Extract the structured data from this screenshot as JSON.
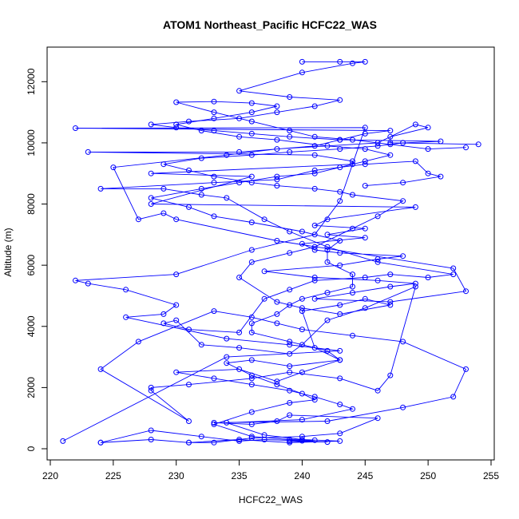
{
  "chart_data": {
    "type": "line",
    "title": "ATOM1 Northeast_Pacific HCFC22_WAS",
    "xlabel": "HCFC22_WAS",
    "ylabel": "Altitude (m)",
    "xlim": [
      220,
      255
    ],
    "ylim": [
      0,
      13000
    ],
    "xticks": [
      220,
      225,
      230,
      235,
      240,
      245,
      250,
      255
    ],
    "yticks": [
      0,
      2000,
      4000,
      6000,
      8000,
      10000,
      12000
    ],
    "marker": "open-circle",
    "grid": false,
    "color": "#0000ff",
    "series": [
      {
        "points": [
          [
            221,
            250
          ],
          [
            234,
            3000
          ],
          [
            243,
            3200
          ],
          [
            239,
            3400
          ],
          [
            234,
            3600
          ],
          [
            226,
            4300
          ],
          [
            229,
            4400
          ],
          [
            230,
            4700
          ],
          [
            226,
            5200
          ],
          [
            223,
            5400
          ],
          [
            222,
            5500
          ],
          [
            230,
            5700
          ],
          [
            236,
            6500
          ],
          [
            241,
            7000
          ],
          [
            243,
            8100
          ],
          [
            245,
            10500
          ],
          [
            222,
            10480
          ],
          [
            247,
            10400
          ],
          [
            245,
            10300
          ],
          [
            243,
            10100
          ],
          [
            241,
            9900
          ],
          [
            235,
            9700
          ],
          [
            223,
            9700
          ],
          [
            241,
            9600
          ],
          [
            244,
            9400
          ],
          [
            244,
            9300
          ],
          [
            228,
            9000
          ],
          [
            236,
            8900
          ],
          [
            228,
            8000
          ],
          [
            249,
            7900
          ],
          [
            242,
            7500
          ],
          [
            241,
            7300
          ],
          [
            245,
            7200
          ],
          [
            242,
            7000
          ],
          [
            245,
            6900
          ],
          [
            240,
            6700
          ],
          [
            241,
            6500
          ],
          [
            243,
            6400
          ],
          [
            248,
            6300
          ],
          [
            246,
            6200
          ],
          [
            243,
            6000
          ],
          [
            237,
            5800
          ],
          [
            241,
            5600
          ],
          [
            246,
            5500
          ],
          [
            249,
            5400
          ],
          [
            247,
            5300
          ],
          [
            244,
            5100
          ],
          [
            241,
            4900
          ],
          [
            247,
            4800
          ],
          [
            253,
            5150
          ],
          [
            252,
            5900
          ],
          [
            238,
            6800
          ],
          [
            230,
            7500
          ],
          [
            229,
            7700
          ],
          [
            227,
            7500
          ],
          [
            225,
            9200
          ],
          [
            234,
            9600
          ],
          [
            238,
            9800
          ],
          [
            246,
            10000
          ],
          [
            249,
            10600
          ],
          [
            250,
            10500
          ],
          [
            247,
            10200
          ],
          [
            247,
            10000
          ],
          [
            254,
            9950
          ]
        ]
      },
      {
        "points": [
          [
            224,
            200
          ],
          [
            228,
            300
          ],
          [
            231,
            200
          ],
          [
            233,
            200
          ],
          [
            236,
            350
          ],
          [
            240,
            400
          ],
          [
            243,
            500
          ],
          [
            246,
            1000
          ],
          [
            239,
            1100
          ],
          [
            238,
            900
          ],
          [
            236,
            800
          ],
          [
            233,
            850
          ],
          [
            242,
            900
          ],
          [
            248,
            1350
          ],
          [
            252,
            1700
          ],
          [
            253,
            2600
          ],
          [
            248,
            3500
          ],
          [
            244,
            3700
          ],
          [
            240,
            3900
          ],
          [
            238,
            4100
          ],
          [
            236,
            4300
          ],
          [
            233,
            4500
          ],
          [
            227,
            3500
          ],
          [
            224,
            2600
          ],
          [
            231,
            900
          ],
          [
            228,
            1900
          ],
          [
            228,
            2000
          ],
          [
            231,
            2100
          ],
          [
            236,
            2300
          ],
          [
            239,
            2500
          ],
          [
            243,
            2300
          ],
          [
            246,
            1900
          ],
          [
            247,
            2400
          ],
          [
            249,
            5300
          ],
          [
            245,
            4600
          ],
          [
            242,
            4200
          ],
          [
            240,
            3400
          ],
          [
            239,
            3100
          ],
          [
            235,
            3300
          ],
          [
            232,
            3400
          ],
          [
            230,
            4200
          ],
          [
            229,
            4100
          ],
          [
            231,
            3900
          ],
          [
            235,
            3800
          ],
          [
            237,
            4900
          ],
          [
            239,
            5200
          ],
          [
            241,
            5500
          ],
          [
            245,
            5600
          ],
          [
            247,
            5700
          ],
          [
            250,
            5600
          ],
          [
            252,
            5700
          ],
          [
            246,
            6100
          ],
          [
            242,
            6600
          ],
          [
            239,
            7100
          ],
          [
            237,
            7500
          ],
          [
            234,
            8200
          ],
          [
            232,
            8300
          ],
          [
            229,
            8500
          ],
          [
            224,
            8500
          ],
          [
            233,
            8700
          ],
          [
            238,
            8800
          ],
          [
            241,
            9100
          ],
          [
            245,
            9300
          ],
          [
            249,
            9400
          ],
          [
            250,
            9000
          ],
          [
            251,
            8900
          ],
          [
            248,
            8700
          ],
          [
            245,
            8600
          ]
        ]
      },
      {
        "points": [
          [
            224,
            200
          ],
          [
            228,
            600
          ],
          [
            232,
            400
          ],
          [
            235,
            250
          ],
          [
            237,
            300
          ],
          [
            240,
            260
          ],
          [
            242,
            220
          ],
          [
            239,
            240
          ],
          [
            241,
            280
          ],
          [
            239,
            300
          ],
          [
            236,
            400
          ],
          [
            233,
            800
          ],
          [
            236,
            1200
          ],
          [
            239,
            1500
          ],
          [
            241,
            1600
          ],
          [
            240,
            1800
          ],
          [
            238,
            2100
          ],
          [
            236,
            2400
          ],
          [
            234,
            2800
          ],
          [
            236,
            2900
          ],
          [
            239,
            2700
          ],
          [
            243,
            2900
          ],
          [
            241,
            3300
          ],
          [
            240,
            4500
          ],
          [
            243,
            4700
          ],
          [
            245,
            4900
          ],
          [
            247,
            4700
          ],
          [
            243,
            4400
          ],
          [
            240,
            4600
          ],
          [
            238,
            4800
          ],
          [
            235,
            5600
          ],
          [
            236,
            6100
          ],
          [
            239,
            6400
          ],
          [
            241,
            6600
          ],
          [
            244,
            7200
          ],
          [
            246,
            7600
          ],
          [
            248,
            8100
          ],
          [
            244,
            8300
          ],
          [
            243,
            8400
          ],
          [
            241,
            8500
          ],
          [
            238,
            8600
          ],
          [
            236,
            8700
          ],
          [
            233,
            8900
          ],
          [
            231,
            9100
          ],
          [
            229,
            9300
          ],
          [
            232,
            9500
          ],
          [
            236,
            9600
          ],
          [
            239,
            9700
          ],
          [
            243,
            9800
          ],
          [
            246,
            9900
          ],
          [
            248,
            10000
          ],
          [
            251,
            10050
          ],
          [
            243,
            10100
          ],
          [
            239,
            10200
          ],
          [
            236,
            10300
          ],
          [
            233,
            10400
          ],
          [
            230,
            10500
          ],
          [
            228,
            10600
          ],
          [
            231,
            10700
          ],
          [
            235,
            10800
          ],
          [
            238,
            11000
          ],
          [
            241,
            11200
          ],
          [
            243,
            11400
          ],
          [
            239,
            11500
          ],
          [
            235,
            11700
          ],
          [
            240,
            12300
          ],
          [
            244,
            12600
          ],
          [
            245,
            12650
          ],
          [
            243,
            12650
          ],
          [
            240,
            12650
          ]
        ]
      },
      {
        "points": [
          [
            231,
            200
          ],
          [
            235,
            300
          ],
          [
            239,
            200
          ],
          [
            243,
            250
          ],
          [
            240,
            300
          ],
          [
            237,
            450
          ],
          [
            234,
            850
          ],
          [
            240,
            950
          ],
          [
            244,
            1300
          ],
          [
            243,
            1450
          ],
          [
            241,
            1700
          ],
          [
            239,
            1900
          ],
          [
            236,
            2100
          ],
          [
            233,
            2300
          ],
          [
            230,
            2500
          ],
          [
            235,
            2600
          ],
          [
            238,
            2200
          ],
          [
            240,
            2500
          ],
          [
            243,
            2900
          ],
          [
            242,
            3200
          ],
          [
            239,
            3500
          ],
          [
            236,
            3800
          ],
          [
            236,
            4100
          ],
          [
            238,
            4400
          ],
          [
            239,
            4700
          ],
          [
            240,
            4900
          ],
          [
            242,
            5100
          ],
          [
            244,
            5300
          ],
          [
            244,
            5700
          ],
          [
            242,
            6100
          ],
          [
            242,
            6500
          ],
          [
            243,
            6800
          ],
          [
            240,
            7100
          ],
          [
            236,
            7400
          ],
          [
            233,
            7600
          ],
          [
            231,
            7900
          ],
          [
            228,
            8200
          ],
          [
            232,
            8500
          ],
          [
            235,
            8700
          ],
          [
            238,
            8900
          ],
          [
            241,
            9000
          ],
          [
            243,
            9200
          ],
          [
            245,
            9400
          ],
          [
            247,
            9600
          ],
          [
            245,
            9800
          ],
          [
            242,
            9900
          ],
          [
            238,
            10100
          ],
          [
            235,
            10200
          ],
          [
            232,
            10400
          ],
          [
            230,
            10600
          ],
          [
            233,
            10800
          ],
          [
            236,
            11000
          ],
          [
            238,
            11200
          ],
          [
            236,
            11300
          ],
          [
            233,
            11350
          ],
          [
            230,
            11330
          ],
          [
            233,
            11000
          ],
          [
            236,
            10700
          ],
          [
            239,
            10400
          ],
          [
            241,
            10200
          ],
          [
            244,
            10100
          ],
          [
            247,
            9950
          ],
          [
            250,
            9800
          ],
          [
            253,
            9850
          ]
        ]
      }
    ]
  }
}
